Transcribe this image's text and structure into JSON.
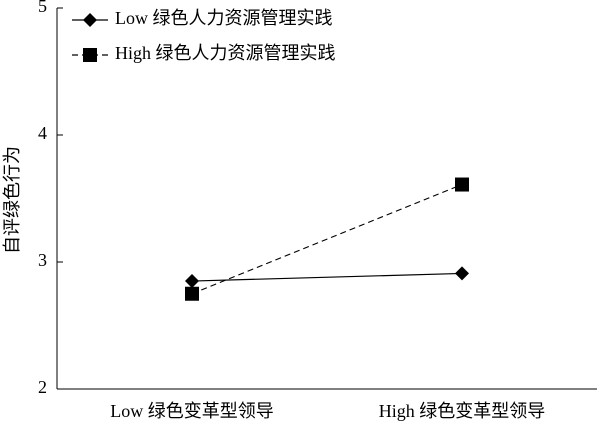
{
  "chart_data": {
    "type": "line",
    "ylabel": "自评绿色行为",
    "categories": [
      "Low 绿色变革型领导",
      "High 绿色变革型领导"
    ],
    "series": [
      {
        "name": "Low 绿色人力资源管理实践",
        "color": "#000000",
        "style": "solid",
        "marker": "diamond",
        "values": [
          2.85,
          2.91
        ]
      },
      {
        "name": "High 绿色人力资源管理实践",
        "color": "#000000",
        "style": "dashed",
        "marker": "square",
        "values": [
          2.75,
          3.61
        ]
      }
    ],
    "ylim": [
      2,
      5
    ],
    "yticks": [
      2,
      3,
      4,
      5
    ],
    "grid": false,
    "legend": "top-left"
  }
}
